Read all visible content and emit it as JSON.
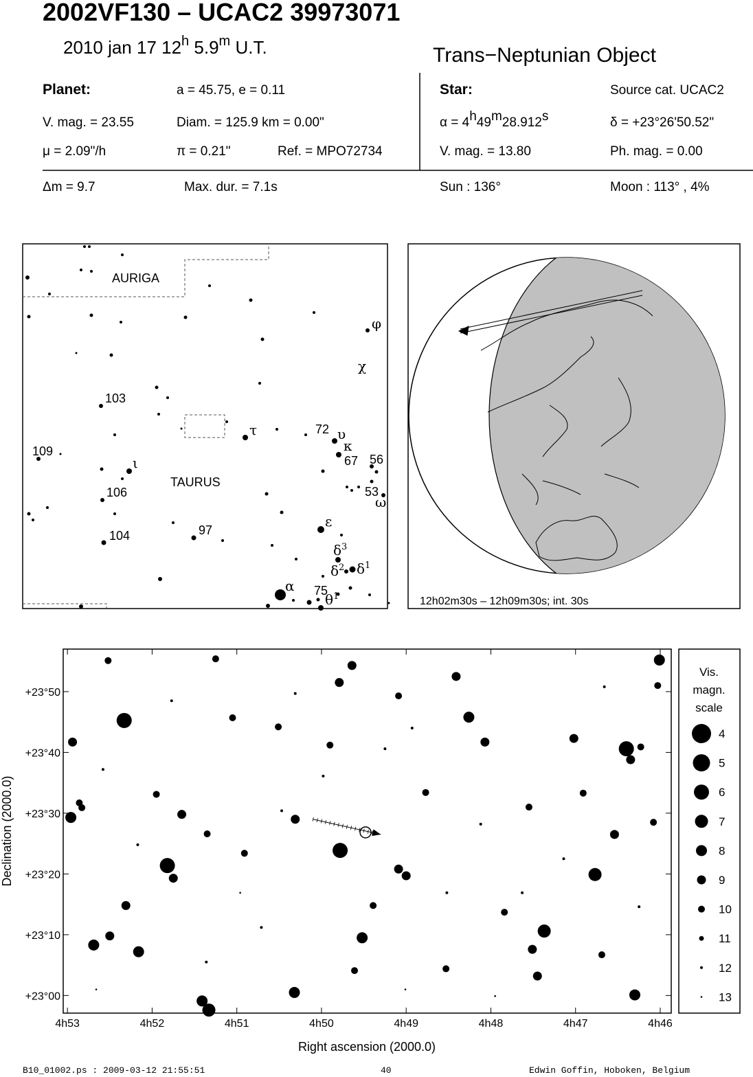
{
  "header": {
    "title": "2002VF130  –  UCAC2 39973071",
    "date": [
      "2010 jan 17  12",
      "h",
      " 5.9",
      "m",
      " U.T."
    ],
    "object_type": "Trans−Neptunian Object"
  },
  "planet": {
    "label": "Planet:",
    "orbit": "a = 45.75, e = 0.11",
    "vmag": "V. mag. = 23.55",
    "diam": "Diam. = 125.9 km = 0.00\"",
    "motion": "μ =  2.09\"/h",
    "parallax": "π =  0.21\"",
    "ref": "Ref. = MPO72734"
  },
  "star": {
    "label": "Star:",
    "source": "Source cat.  UCAC2",
    "ra": [
      "α =  4",
      "h",
      "49",
      "m",
      "28.912",
      "s"
    ],
    "dec": "δ = +23°26'50.52\"",
    "vmag": "V. mag. = 13.80",
    "phmag": "Ph. mag. =  0.00"
  },
  "event": {
    "dm": "Δm = 9.7",
    "maxdur": "Max. dur. = 7.1s",
    "sun": "Sun : 136°",
    "moon": "Moon : 113° ,  4%"
  },
  "finder": {
    "constellations": [
      "AURIGA",
      "TAURUS"
    ],
    "labels": [
      {
        "text": "φ"
      },
      {
        "text": "χ"
      },
      {
        "text": "103"
      },
      {
        "text": "τ"
      },
      {
        "text": "72"
      },
      {
        "text": "υ"
      },
      {
        "text": "κ"
      },
      {
        "text": "109"
      },
      {
        "text": "ι"
      },
      {
        "text": "67"
      },
      {
        "text": "56"
      },
      {
        "text": "106"
      },
      {
        "text": "53"
      },
      {
        "text": "ω"
      },
      {
        "text": "97"
      },
      {
        "text": "ε"
      },
      {
        "text": "104"
      },
      {
        "text": "δ",
        "sup": "3"
      },
      {
        "text": "δ",
        "sup": "2"
      },
      {
        "text": "δ",
        "sup": "1"
      },
      {
        "text": "α"
      },
      {
        "text": "75"
      },
      {
        "text": "θ",
        "sup": "1"
      }
    ]
  },
  "globe": {
    "caption": "12h02m30s – 12h09m30s; int. 30s"
  },
  "chart_data": {
    "type": "scatter",
    "xlabel": "Right ascension (2000.0)",
    "ylabel": "Declination (2000.0)",
    "xlim": [
      53.05,
      45.87
    ],
    "ylim": [
      -2.9,
      57
    ],
    "xticks": [
      {
        "value": 53,
        "label": "4h53"
      },
      {
        "value": 52,
        "label": "4h52"
      },
      {
        "value": 51,
        "label": "4h51"
      },
      {
        "value": 50,
        "label": "4h50"
      },
      {
        "value": 49,
        "label": "4h49"
      },
      {
        "value": 48,
        "label": "4h48"
      },
      {
        "value": 47,
        "label": "4h47"
      },
      {
        "value": 46,
        "label": "4h46"
      }
    ],
    "yticks": [
      {
        "value": 0,
        "label": "+23°00"
      },
      {
        "value": 10,
        "label": "+23°10"
      },
      {
        "value": 20,
        "label": "+23°20"
      },
      {
        "value": 30,
        "label": "+23°30"
      },
      {
        "value": 40,
        "label": "+23°40"
      },
      {
        "value": 50,
        "label": "+23°50"
      }
    ],
    "x": [
      52.33,
      51.82,
      49.78,
      46.4,
      46.77,
      47.37,
      46.01,
      51.33,
      51.41,
      46.3,
      52.69,
      52.16,
      52.96,
      50.32,
      49.52,
      48.26,
      48.07,
      47.02,
      47.45,
      49.64,
      49.79,
      48.41,
      49.09,
      49.0,
      50.31,
      51.65,
      51.75,
      52.31,
      52.5,
      52.94,
      46.35,
      46.23,
      47.51,
      46.54,
      46.91,
      47.55,
      49.39,
      50.91,
      51.35,
      51.95,
      51.25,
      52.52,
      46.08,
      52.86,
      52.83,
      50.51,
      51.05,
      49.9,
      49.09,
      48.77,
      48.53,
      49.61,
      46.03,
      46.69,
      47.84,
      50.47,
      49.98,
      49.25,
      48.12,
      47.63,
      47.14,
      48.52,
      50.71,
      51.36,
      52.17,
      52.58,
      51.77,
      50.31,
      48.93,
      46.66,
      46.25,
      49.01,
      47.95,
      50.96,
      52.66
    ],
    "y": [
      45.25,
      21.38,
      23.87,
      40.6,
      19.9,
      10.6,
      55.2,
      -2.4,
      -0.9,
      0.1,
      8.3,
      7.2,
      29.3,
      0.5,
      9.5,
      45.8,
      41.7,
      42.3,
      3.2,
      54.3,
      51.5,
      52.5,
      20.8,
      19.7,
      29.0,
      29.8,
      19.3,
      14.8,
      9.8,
      41.7,
      38.8,
      40.9,
      7.6,
      26.5,
      33.3,
      31.0,
      14.8,
      23.4,
      26.6,
      33.1,
      55.4,
      55.1,
      28.5,
      31.7,
      30.9,
      44.2,
      45.7,
      41.2,
      49.3,
      33.4,
      4.4,
      4.1,
      51.0,
      6.7,
      13.7,
      30.4,
      36.1,
      40.6,
      28.2,
      16.9,
      22.5,
      16.9,
      11.2,
      5.5,
      24.8,
      37.2,
      48.5,
      49.7,
      44.0,
      50.8,
      14.6,
      1.0,
      -0.1,
      16.9,
      1.0
    ],
    "sizes": [
      6,
      6,
      6,
      6,
      7,
      7,
      8,
      7,
      8,
      8,
      8,
      8,
      8,
      8,
      8,
      8,
      9,
      9,
      9,
      9,
      9,
      9,
      9,
      9,
      9,
      9,
      9,
      9,
      9,
      9,
      9,
      10,
      9,
      9,
      10,
      10,
      10,
      10,
      10,
      10,
      10,
      10,
      10,
      10,
      10,
      10,
      10,
      10,
      10,
      10,
      10,
      10,
      10,
      10,
      10,
      12,
      12,
      12,
      12,
      12,
      12,
      12,
      12,
      12,
      12,
      12,
      12,
      12,
      12,
      12,
      12,
      13,
      13,
      13,
      13
    ],
    "track": {
      "x": [
        50.1,
        49.3
      ],
      "y": [
        29.0,
        26.5
      ]
    },
    "target": {
      "x": 49.48,
      "y": 26.84
    },
    "legend": {
      "title": [
        "Vis.",
        "magn.",
        "scale"
      ],
      "values": [
        4,
        5,
        6,
        7,
        8,
        9,
        10,
        11,
        12,
        13
      ]
    }
  },
  "footer": {
    "file": "B10_01002.ps : 2009-03-12 21:55:51",
    "page": "40",
    "author": "Edwin Goffin, Hoboken, Belgium"
  }
}
